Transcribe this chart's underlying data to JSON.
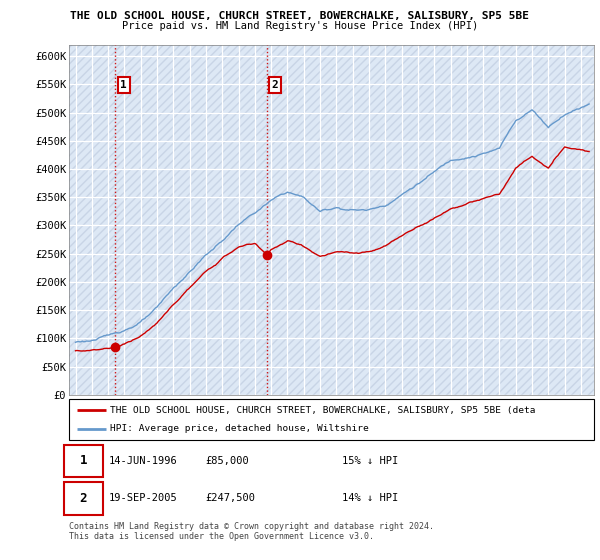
{
  "title1": "THE OLD SCHOOL HOUSE, CHURCH STREET, BOWERCHALKE, SALISBURY, SP5 5BE",
  "title2": "Price paid vs. HM Land Registry's House Price Index (HPI)",
  "ylabel_ticks": [
    "£0",
    "£50K",
    "£100K",
    "£150K",
    "£200K",
    "£250K",
    "£300K",
    "£350K",
    "£400K",
    "£450K",
    "£500K",
    "£550K",
    "£600K"
  ],
  "ytick_values": [
    0,
    50000,
    100000,
    150000,
    200000,
    250000,
    300000,
    350000,
    400000,
    450000,
    500000,
    550000,
    600000
  ],
  "xmin": 1993.6,
  "xmax": 2025.8,
  "ymin": 0,
  "ymax": 620000,
  "purchase1_date": 1996.45,
  "purchase1_value": 85000,
  "purchase1_label": "1",
  "purchase2_date": 2005.72,
  "purchase2_value": 247500,
  "purchase2_label": "2",
  "legend_line1": "THE OLD SCHOOL HOUSE, CHURCH STREET, BOWERCHALKE, SALISBURY, SP5 5BE (deta",
  "legend_line2": "HPI: Average price, detached house, Wiltshire",
  "table_row1": [
    "1",
    "14-JUN-1996",
    "£85,000",
    "15% ↓ HPI"
  ],
  "table_row2": [
    "2",
    "19-SEP-2005",
    "£247,500",
    "14% ↓ HPI"
  ],
  "footer": "Contains HM Land Registry data © Crown copyright and database right 2024.\nThis data is licensed under the Open Government Licence v3.0.",
  "hpi_color": "#6699cc",
  "price_color": "#cc0000",
  "bg_color": "#dde8f5",
  "grid_color": "#b0bcd4",
  "hatch_color": "#c8d4e6"
}
